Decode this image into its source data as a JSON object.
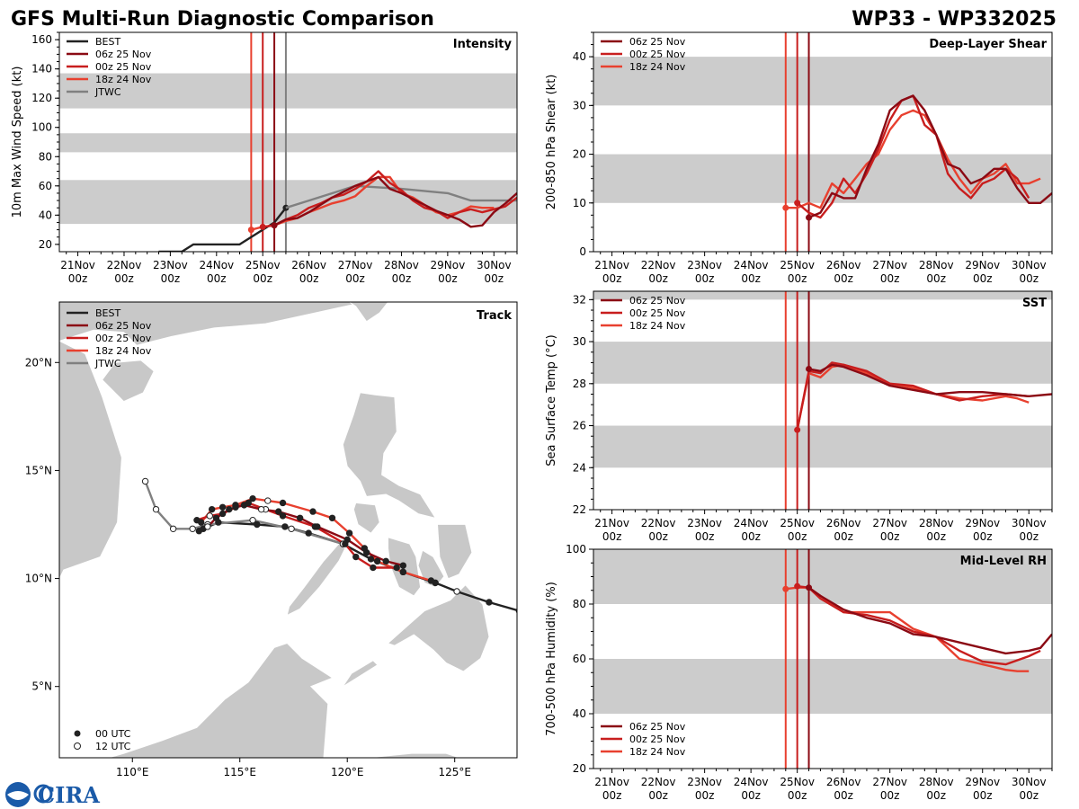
{
  "header": {
    "title": "GFS Multi-Run Diagnostic Comparison",
    "storm_id": "WP33 - WP332025"
  },
  "colors": {
    "best": "#222222",
    "run_06z": "#8b0a14",
    "run_00z": "#c81e1e",
    "run_18z": "#e8402f",
    "jtwc": "#808080",
    "band": "#cccccc",
    "land": "#c8c8c8"
  },
  "legend_labels": {
    "best": "BEST",
    "run_06z": "06z 25 Nov",
    "run_00z": "00z 25 Nov",
    "run_18z": "18z 24 Nov",
    "jtwc": "JTWC",
    "utc00": "00 UTC",
    "utc12": "12 UTC"
  },
  "logo": {
    "text": "CIRA",
    "icon": "noaa-logo-icon"
  },
  "time_axis": {
    "ticks": [
      {
        "l1": "21Nov",
        "l2": "00z"
      },
      {
        "l1": "22Nov",
        "l2": "00z"
      },
      {
        "l1": "23Nov",
        "l2": "00z"
      },
      {
        "l1": "24Nov",
        "l2": "00z"
      },
      {
        "l1": "25Nov",
        "l2": "00z"
      },
      {
        "l1": "26Nov",
        "l2": "00z"
      },
      {
        "l1": "27Nov",
        "l2": "00z"
      },
      {
        "l1": "28Nov",
        "l2": "00z"
      },
      {
        "l1": "29Nov",
        "l2": "00z"
      },
      {
        "l1": "30Nov",
        "l2": "00z"
      }
    ],
    "range_days": [
      -0.4,
      9.5
    ],
    "init_lines": [
      {
        "key": "run_18z",
        "day": 3.75
      },
      {
        "key": "run_00z",
        "day": 4.0
      },
      {
        "key": "run_06z",
        "day": 4.25
      }
    ]
  },
  "chart_data": [
    {
      "id": "intensity",
      "type": "line",
      "title": "Intensity",
      "ylabel": "10m Max Wind Speed (kt)",
      "ylim": [
        15,
        165
      ],
      "yticks": [
        20,
        40,
        60,
        80,
        100,
        120,
        140,
        160
      ],
      "bands": [
        [
          34,
          64
        ],
        [
          83,
          96
        ],
        [
          113,
          137
        ]
      ],
      "init_lines": [
        "run_18z",
        "run_00z",
        "run_06z",
        "jtwc"
      ],
      "init_line_days": {
        "run_18z": 3.75,
        "run_00z": 4.0,
        "run_06z": 4.25,
        "jtwc": 4.5
      },
      "legend": [
        "best",
        "run_06z",
        "run_00z",
        "run_18z",
        "jtwc"
      ],
      "series": [
        {
          "key": "best",
          "x": [
            1.75,
            2.25,
            2.5,
            3.0,
            3.5,
            4.0,
            4.25,
            4.5
          ],
          "y": [
            15,
            15,
            20,
            20,
            20,
            30,
            35,
            45
          ],
          "end_marker": true
        },
        {
          "key": "jtwc",
          "x": [
            4.5,
            5.0,
            6.0,
            7.0,
            8.0,
            8.5,
            9.5
          ],
          "y": [
            45,
            50,
            60,
            58,
            55,
            50,
            50
          ]
        },
        {
          "key": "run_18z",
          "x": [
            3.75,
            4.0,
            4.25,
            4.5,
            4.75,
            5.0,
            5.25,
            5.5,
            5.75,
            6.0,
            6.25,
            6.5,
            6.75,
            7.0,
            7.25,
            7.5,
            7.75,
            8.0,
            8.25,
            8.5,
            8.75,
            9.0
          ],
          "y": [
            30,
            32,
            33,
            36,
            38,
            42,
            45,
            48,
            50,
            53,
            60,
            66,
            66,
            55,
            52,
            47,
            42,
            40,
            42,
            46,
            45,
            45
          ],
          "start_marker": true
        },
        {
          "key": "run_00z",
          "x": [
            4.0,
            4.25,
            4.5,
            4.75,
            5.0,
            5.25,
            5.5,
            5.75,
            6.0,
            6.25,
            6.5,
            6.75,
            7.0,
            7.25,
            7.5,
            7.75,
            8.0,
            8.25,
            8.5,
            8.75,
            9.0,
            9.25,
            9.5
          ],
          "y": [
            32,
            33,
            37,
            40,
            45,
            48,
            52,
            54,
            58,
            63,
            70,
            62,
            57,
            50,
            45,
            43,
            38,
            42,
            44,
            42,
            44,
            46,
            52
          ],
          "start_marker": true
        },
        {
          "key": "run_06z",
          "x": [
            4.25,
            4.5,
            4.75,
            5.0,
            5.25,
            5.5,
            5.75,
            6.0,
            6.25,
            6.5,
            6.75,
            7.0,
            7.25,
            7.5,
            7.75,
            8.0,
            8.25,
            8.5,
            8.75,
            9.0,
            9.25,
            9.5
          ],
          "y": [
            33,
            37,
            38,
            42,
            47,
            52,
            56,
            60,
            63,
            66,
            58,
            55,
            51,
            47,
            43,
            40,
            37,
            32,
            33,
            42,
            48,
            55
          ],
          "start_marker": true
        }
      ]
    },
    {
      "id": "shear",
      "type": "line",
      "title": "Deep-Layer Shear",
      "ylabel": "200-850 hPa Shear (kt)",
      "ylim": [
        0,
        45
      ],
      "yticks": [
        0,
        10,
        20,
        30,
        40
      ],
      "bands": [
        [
          10,
          20
        ],
        [
          30,
          40
        ]
      ],
      "init_lines": [
        "run_18z",
        "run_00z",
        "run_06z"
      ],
      "init_line_days": {
        "run_18z": 3.75,
        "run_00z": 4.0,
        "run_06z": 4.25
      },
      "legend": [
        "run_06z",
        "run_00z",
        "run_18z"
      ],
      "series": [
        {
          "key": "run_18z",
          "x": [
            3.75,
            4.0,
            4.25,
            4.5,
            4.75,
            5.0,
            5.25,
            5.5,
            5.75,
            6.0,
            6.25,
            6.5,
            6.75,
            7.0,
            7.25,
            7.5,
            7.75,
            8.0,
            8.25,
            8.5,
            8.75,
            9.0,
            9.25
          ],
          "y": [
            9,
            9,
            10,
            9,
            14,
            12,
            15,
            18,
            20,
            25,
            28,
            29,
            28,
            24,
            19,
            15,
            12,
            15,
            16,
            18,
            14,
            14,
            15
          ],
          "start_marker": true
        },
        {
          "key": "run_00z",
          "x": [
            4.0,
            4.25,
            4.5,
            4.75,
            5.0,
            5.25,
            5.5,
            5.75,
            6.0,
            6.25,
            6.5,
            6.75,
            7.0,
            7.25,
            7.5,
            7.75,
            8.0,
            8.25,
            8.5,
            8.75,
            9.0
          ],
          "y": [
            10,
            8,
            7,
            10,
            15,
            12,
            16,
            21,
            27,
            31,
            32,
            26,
            24,
            16,
            13,
            11,
            14,
            15,
            17,
            15,
            11
          ],
          "start_marker": true
        },
        {
          "key": "run_06z",
          "x": [
            4.25,
            4.5,
            4.75,
            5.0,
            5.25,
            5.5,
            5.75,
            6.0,
            6.25,
            6.5,
            6.75,
            7.0,
            7.25,
            7.5,
            7.75,
            8.0,
            8.25,
            8.5,
            8.75,
            9.0,
            9.25,
            9.5
          ],
          "y": [
            7,
            8,
            12,
            11,
            11,
            17,
            22,
            29,
            31,
            32,
            29,
            24,
            18,
            17,
            14,
            15,
            17,
            17,
            13,
            10,
            10,
            12
          ],
          "start_marker": true
        }
      ]
    },
    {
      "id": "sst",
      "type": "line",
      "title": "SST",
      "ylabel": "Sea Surface Temp (°C)",
      "ylim": [
        22,
        32.4
      ],
      "yticks": [
        22,
        24,
        26,
        28,
        30,
        32
      ],
      "bands": [
        [
          24,
          26
        ],
        [
          28,
          30
        ],
        [
          32,
          34
        ]
      ],
      "init_lines": [
        "run_18z",
        "run_00z",
        "run_06z"
      ],
      "init_line_days": {
        "run_18z": 3.75,
        "run_00z": 4.0,
        "run_06z": 4.25
      },
      "legend": [
        "run_06z",
        "run_00z",
        "run_18z"
      ],
      "series": [
        {
          "key": "run_18z",
          "x": [
            4.0,
            4.25,
            4.5,
            4.75,
            5.0,
            5.5,
            6.0,
            6.5,
            7.0,
            7.5,
            8.0,
            8.5,
            8.75,
            9.0
          ],
          "y": [
            25.8,
            28.5,
            28.3,
            28.8,
            28.9,
            28.5,
            28.0,
            27.8,
            27.5,
            27.3,
            27.2,
            27.4,
            27.3,
            27.1
          ]
        },
        {
          "key": "run_00z",
          "x": [
            4.0,
            4.25,
            4.5,
            4.75,
            5.0,
            5.5,
            6.0,
            6.5,
            7.0,
            7.5,
            8.0,
            8.5,
            9.0
          ],
          "y": [
            25.8,
            28.6,
            28.5,
            29.0,
            28.9,
            28.6,
            28.0,
            27.9,
            27.5,
            27.2,
            27.4,
            27.5,
            27.4
          ],
          "start_marker": true
        },
        {
          "key": "run_06z",
          "x": [
            4.25,
            4.5,
            4.75,
            5.0,
            5.5,
            6.0,
            6.5,
            7.0,
            7.5,
            8.0,
            8.5,
            9.0,
            9.5
          ],
          "y": [
            28.7,
            28.6,
            28.9,
            28.8,
            28.4,
            27.9,
            27.7,
            27.5,
            27.6,
            27.6,
            27.5,
            27.4,
            27.5
          ],
          "start_marker": true
        }
      ]
    },
    {
      "id": "rh",
      "type": "line",
      "title": "Mid-Level RH",
      "ylabel": "700-500 hPa Humidity (%)",
      "ylim": [
        20,
        100
      ],
      "yticks": [
        20,
        40,
        60,
        80,
        100
      ],
      "bands": [
        [
          40,
          60
        ],
        [
          80,
          100
        ]
      ],
      "init_lines": [
        "run_18z",
        "run_00z",
        "run_06z"
      ],
      "init_line_days": {
        "run_18z": 3.75,
        "run_00z": 4.0,
        "run_06z": 4.25
      },
      "legend": [
        "run_06z",
        "run_00z",
        "run_18z"
      ],
      "legend_position": "lower-left",
      "series": [
        {
          "key": "run_18z",
          "x": [
            3.75,
            4.0,
            4.25,
            4.5,
            5.0,
            5.5,
            6.0,
            6.5,
            7.0,
            7.5,
            8.0,
            8.25,
            8.5,
            8.75,
            9.0
          ],
          "y": [
            85.5,
            86,
            86,
            83,
            77,
            77,
            77,
            71,
            68,
            60,
            58,
            57,
            56,
            55.5,
            55.5
          ],
          "start_marker": true
        },
        {
          "key": "run_00z",
          "x": [
            4.0,
            4.25,
            4.5,
            5.0,
            5.5,
            6.0,
            6.5,
            7.0,
            7.5,
            8.0,
            8.5,
            9.0,
            9.25
          ],
          "y": [
            86.5,
            86,
            82,
            77,
            76,
            74,
            70,
            68,
            63,
            59,
            58,
            61,
            63
          ],
          "start_marker": true
        },
        {
          "key": "run_06z",
          "x": [
            4.25,
            4.5,
            5.0,
            5.5,
            6.0,
            6.5,
            7.0,
            7.5,
            8.0,
            8.5,
            9.0,
            9.25,
            9.5
          ],
          "y": [
            86,
            83,
            78,
            75,
            73,
            69,
            68,
            66,
            64,
            62,
            63,
            64,
            69
          ],
          "start_marker": true
        }
      ]
    },
    {
      "id": "track",
      "type": "scatter",
      "title": "Track",
      "xlim": [
        106.6,
        127.9
      ],
      "ylim": [
        1.7,
        22.8
      ],
      "xticks": [
        {
          "v": 110,
          "label": "110°E"
        },
        {
          "v": 115,
          "label": "115°E"
        },
        {
          "v": 120,
          "label": "120°E"
        },
        {
          "v": 125,
          "label": "125°E"
        }
      ],
      "yticks": [
        {
          "v": 5,
          "label": "5°N"
        },
        {
          "v": 10,
          "label": "10°N"
        },
        {
          "v": 15,
          "label": "15°N"
        },
        {
          "v": 20,
          "label": "20°N"
        }
      ],
      "legend": [
        "best",
        "run_06z",
        "run_00z",
        "run_18z",
        "jtwc"
      ],
      "series": [
        {
          "key": "best",
          "lon": [
            128.0,
            126.6,
            125.1,
            124.1,
            122.6,
            121.1,
            119.8,
            118.2,
            117.1,
            115.8,
            114.0,
            113.3
          ],
          "lat": [
            8.5,
            8.9,
            9.4,
            9.8,
            10.3,
            10.9,
            11.6,
            12.1,
            12.4,
            12.5,
            12.6,
            12.3
          ],
          "open": [
            false,
            false,
            true,
            false,
            false,
            false,
            true,
            false,
            false,
            false,
            false,
            false
          ]
        },
        {
          "key": "jtwc",
          "lon": [
            119.8,
            117.4,
            115.6,
            113.5,
            112.8,
            111.9,
            111.1,
            110.6
          ],
          "lat": [
            11.6,
            12.3,
            12.7,
            12.5,
            12.3,
            12.3,
            13.2,
            14.5
          ],
          "open": [
            true,
            true,
            true,
            true,
            true,
            true,
            true,
            true
          ]
        },
        {
          "key": "run_18z",
          "lon": [
            123.9,
            122.6,
            121.4,
            120.8,
            120.1,
            119.3,
            118.4,
            117.0,
            116.3,
            115.6,
            114.8,
            114.2,
            113.7,
            113.2
          ],
          "lat": [
            9.9,
            10.3,
            10.8,
            11.4,
            12.1,
            12.8,
            13.1,
            13.5,
            13.6,
            13.7,
            13.4,
            13.3,
            13.2,
            12.6
          ],
          "open": [
            false,
            false,
            false,
            false,
            false,
            false,
            false,
            false,
            true,
            false,
            false,
            false,
            false,
            false
          ]
        },
        {
          "key": "run_00z",
          "lon": [
            122.3,
            121.2,
            120.4,
            119.9,
            118.5,
            117.0,
            116.2,
            115.4,
            114.8,
            114.2,
            113.6,
            113.0
          ],
          "lat": [
            10.5,
            10.5,
            11.0,
            11.6,
            12.4,
            12.9,
            13.2,
            13.5,
            13.3,
            13.0,
            12.9,
            12.7
          ],
          "open": [
            false,
            false,
            false,
            false,
            false,
            false,
            true,
            false,
            false,
            false,
            true,
            false
          ]
        },
        {
          "key": "run_06z",
          "lon": [
            122.6,
            121.8,
            120.9,
            120.0,
            118.6,
            117.8,
            116.8,
            116.0,
            115.2,
            114.5,
            113.9,
            113.5,
            113.1
          ],
          "lat": [
            10.6,
            10.8,
            11.2,
            11.8,
            12.4,
            12.8,
            13.1,
            13.2,
            13.4,
            13.2,
            12.8,
            12.4,
            12.2
          ],
          "open": [
            false,
            false,
            false,
            false,
            false,
            false,
            false,
            true,
            false,
            false,
            false,
            true,
            false
          ]
        }
      ]
    }
  ]
}
